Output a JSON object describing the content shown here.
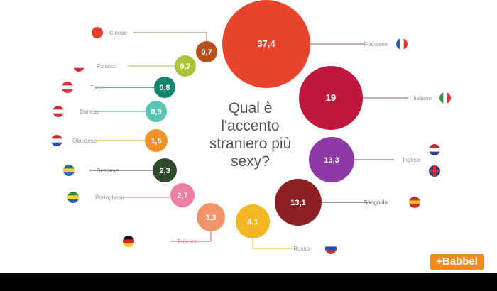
{
  "title": "Qual è l'accento straniero più sexy?",
  "title_lines": [
    "Qual è",
    "l'accento",
    "straniero più",
    "sexy?"
  ],
  "logo": "+Babbel",
  "chart_data": {
    "type": "bubble",
    "title": "Qual è l'accento straniero più sexy?",
    "unit": "%",
    "categories": [
      "Francese",
      "Italiano",
      "Inglese",
      "Spagnolo",
      "Russo",
      "Tedesco",
      "Portoghese",
      "Svedese",
      "Olandese",
      "Danese",
      "Turco",
      "Polacco",
      "Cinese"
    ],
    "values": [
      37.4,
      19,
      13.3,
      13.1,
      4.1,
      3.3,
      2.7,
      2.3,
      1.5,
      0.9,
      0.8,
      0.7,
      0.7
    ],
    "value_labels": [
      "37,4",
      "19",
      "13,3",
      "13,1",
      "4,1",
      "3,3",
      "2,7",
      "2,3",
      "1,5",
      "0,9",
      "0,8",
      "0,7",
      "0,7"
    ],
    "colors": [
      "#e8432b",
      "#c0173d",
      "#8e3aa6",
      "#8e1f25",
      "#f2b722",
      "#f0956a",
      "#ec7fa3",
      "#2f4a2e",
      "#f0922a",
      "#5cc4b3",
      "#13856a",
      "#a8c53a",
      "#b8501e"
    ],
    "legend": "none",
    "grid": false
  }
}
